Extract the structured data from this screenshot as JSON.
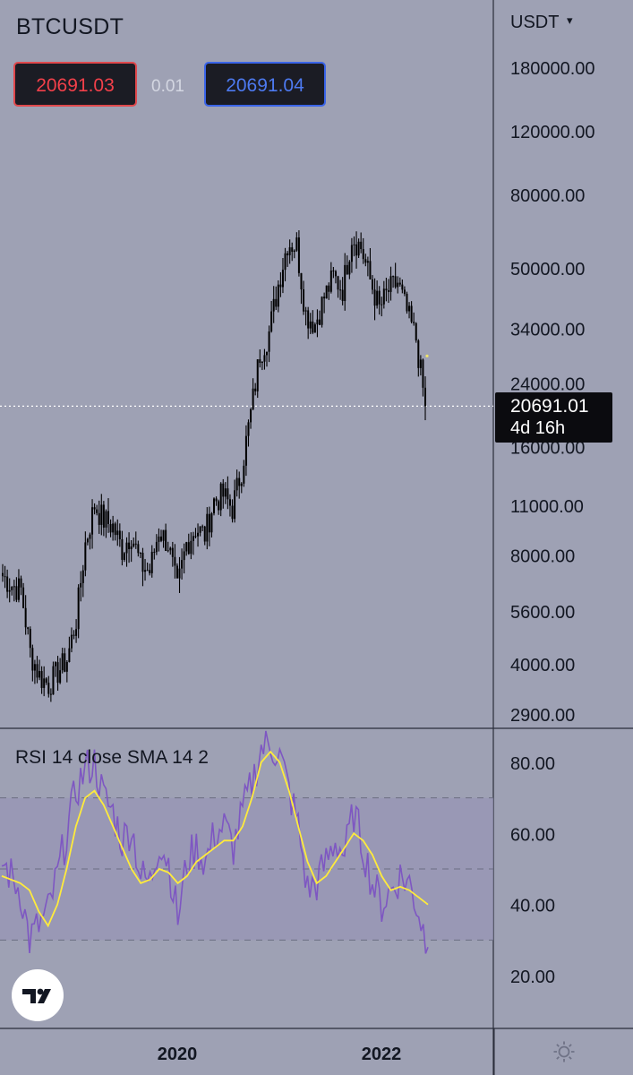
{
  "header": {
    "symbol": "BTCUSDT",
    "bid": "20691.03",
    "spread": "0.01",
    "ask": "20691.04"
  },
  "price_axis": {
    "unit": "USDT",
    "last_price": "20691.01",
    "countdown": "4d 16h"
  },
  "rsi_pane": {
    "label": "RSI 14 close SMA 14 2"
  },
  "colors": {
    "background": "#9ea1b4",
    "candle": "#000000",
    "rsi_line": "#7e57c2",
    "rsi_sma": "#ffeb3b",
    "rsi_band": "#9796b6",
    "bid": "#f2404a",
    "ask": "#4d7af0"
  },
  "icons": [
    "chevron-down-icon",
    "tradingview-logo-icon",
    "settings-icon"
  ],
  "chart_data": [
    {
      "type": "candlestick",
      "title": "BTCUSDT",
      "interval": "1W",
      "y_scale": "log",
      "ylim": [
        2700,
        190000
      ],
      "y_ticks": [
        "180000.00",
        "120000.00",
        "80000.00",
        "50000.00",
        "34000.00",
        "24000.00",
        "16000.00",
        "11000.00",
        "8000.00",
        "5600.00",
        "4000.00",
        "2900.00"
      ],
      "x_ticks": [
        "2020",
        "2022"
      ],
      "last_price": 20691.01,
      "series": [
        {
          "name": "price",
          "x": [
            "2018-08",
            "2018-09",
            "2018-10",
            "2018-11",
            "2018-12",
            "2019-01",
            "2019-02",
            "2019-03",
            "2019-04",
            "2019-05",
            "2019-06",
            "2019-07",
            "2019-08",
            "2019-09",
            "2019-10",
            "2019-11",
            "2019-12",
            "2020-01",
            "2020-02",
            "2020-03",
            "2020-04",
            "2020-05",
            "2020-06",
            "2020-07",
            "2020-08",
            "2020-09",
            "2020-10",
            "2020-11",
            "2020-12",
            "2021-01",
            "2021-02",
            "2021-03",
            "2021-04",
            "2021-05",
            "2021-06",
            "2021-07",
            "2021-08",
            "2021-09",
            "2021-10",
            "2021-11",
            "2021-12",
            "2022-01",
            "2022-02",
            "2022-03",
            "2022-04",
            "2022-05",
            "2022-06"
          ],
          "close": [
            7000,
            6600,
            6400,
            4300,
            3700,
            3500,
            3800,
            4100,
            5300,
            8600,
            11000,
            10000,
            9600,
            8300,
            9200,
            7500,
            7200,
            9400,
            8600,
            6400,
            8600,
            9500,
            9100,
            11300,
            11700,
            10800,
            13800,
            19700,
            29000,
            33100,
            45000,
            58800,
            57700,
            37300,
            35000,
            41500,
            47100,
            43800,
            61300,
            57000,
            46200,
            38500,
            43200,
            45500,
            37600,
            31800,
            20691
          ]
        }
      ]
    },
    {
      "type": "line",
      "title": "RSI 14 close SMA 14 2",
      "ylim": [
        20,
        85
      ],
      "y_ticks": [
        "80.00",
        "60.00",
        "40.00",
        "20.00"
      ],
      "bands": [
        30,
        50,
        70
      ],
      "series": [
        {
          "name": "RSI",
          "x": [
            "2018-08",
            "2018-09",
            "2018-10",
            "2018-11",
            "2018-12",
            "2019-01",
            "2019-02",
            "2019-03",
            "2019-04",
            "2019-05",
            "2019-06",
            "2019-07",
            "2019-08",
            "2019-09",
            "2019-10",
            "2019-11",
            "2019-12",
            "2020-01",
            "2020-02",
            "2020-03",
            "2020-04",
            "2020-05",
            "2020-06",
            "2020-07",
            "2020-08",
            "2020-09",
            "2020-10",
            "2020-11",
            "2020-12",
            "2021-01",
            "2021-02",
            "2021-03",
            "2021-04",
            "2021-05",
            "2021-06",
            "2021-07",
            "2021-08",
            "2021-09",
            "2021-10",
            "2021-11",
            "2021-12",
            "2022-01",
            "2022-02",
            "2022-03",
            "2022-04",
            "2022-05",
            "2022-06"
          ],
          "values": [
            52,
            48,
            44,
            30,
            34,
            38,
            48,
            60,
            72,
            78,
            80,
            70,
            66,
            58,
            62,
            48,
            46,
            58,
            52,
            36,
            52,
            56,
            52,
            60,
            62,
            56,
            66,
            74,
            84,
            85,
            82,
            72,
            62,
            44,
            46,
            52,
            58,
            54,
            66,
            56,
            46,
            40,
            44,
            48,
            46,
            38,
            28
          ]
        },
        {
          "name": "SMA",
          "x": [
            "2018-08",
            "2018-09",
            "2018-10",
            "2018-11",
            "2018-12",
            "2019-01",
            "2019-02",
            "2019-03",
            "2019-04",
            "2019-05",
            "2019-06",
            "2019-07",
            "2019-08",
            "2019-09",
            "2019-10",
            "2019-11",
            "2019-12",
            "2020-01",
            "2020-02",
            "2020-03",
            "2020-04",
            "2020-05",
            "2020-06",
            "2020-07",
            "2020-08",
            "2020-09",
            "2020-10",
            "2020-11",
            "2020-12",
            "2021-01",
            "2021-02",
            "2021-03",
            "2021-04",
            "2021-05",
            "2021-06",
            "2021-07",
            "2021-08",
            "2021-09",
            "2021-10",
            "2021-11",
            "2021-12",
            "2022-01",
            "2022-02",
            "2022-03",
            "2022-04",
            "2022-05",
            "2022-06"
          ],
          "values": [
            48,
            47,
            46,
            44,
            38,
            34,
            40,
            50,
            62,
            70,
            72,
            68,
            62,
            56,
            50,
            46,
            47,
            50,
            49,
            46,
            48,
            52,
            54,
            56,
            58,
            58,
            62,
            70,
            80,
            83,
            80,
            72,
            62,
            52,
            46,
            48,
            52,
            56,
            60,
            58,
            54,
            48,
            44,
            45,
            44,
            42,
            40
          ]
        }
      ]
    }
  ]
}
